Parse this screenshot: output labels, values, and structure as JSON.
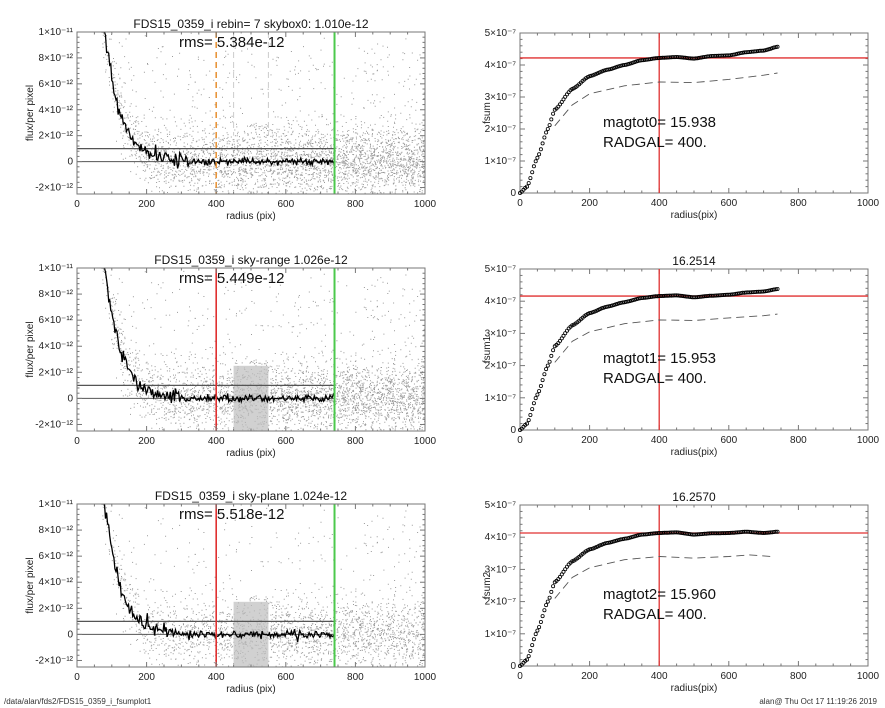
{
  "footer": {
    "path": "/data/alan/fds2/FDS15_0359_i_fsumplot1",
    "stamp": "alan@  Thu Oct 17 11:19:26 2019"
  },
  "colors": {
    "profile": "#000000",
    "scatter": "#9a9a9a",
    "sky_line": "#555555",
    "radgal_line": "#e03030",
    "radgal_dashed": "#e8963c",
    "outer_line": "#4cc94c",
    "fsum_curve": "#000000",
    "fsum_dashed": "#555555"
  },
  "chart_data": [
    {
      "id": "profile0",
      "type": "scatter",
      "title": "FDS15_0359_i rebin= 7    skybox0:  1.010e-12",
      "annotation": "rms= 5.384e-12",
      "xlabel": "radius (pix)",
      "ylabel": "flux/per pixel",
      "xlim": [
        0,
        1000
      ],
      "ylim": [
        -2.5e-12,
        1e-11
      ],
      "xticks": [
        0,
        200,
        400,
        600,
        800,
        1000
      ],
      "xtick_labels": [
        "0",
        "200",
        "400",
        "600",
        "800",
        "1000"
      ],
      "yticks": [
        -2e-12,
        0,
        2e-12,
        4e-12,
        6e-12,
        8e-12,
        1e-11
      ],
      "ytick_labels": [
        "-2×10⁻¹²",
        "0",
        "2×10⁻¹²",
        "4×10⁻¹²",
        "6×10⁻¹²",
        "8×10⁻¹²",
        "1×10⁻¹¹"
      ],
      "sky_level": 1e-12,
      "zero_level": 0,
      "radgal_line": {
        "x": 400,
        "style": "dashed",
        "color": "orange"
      },
      "outer_line": {
        "x": 740,
        "color": "green"
      },
      "sky_region": null,
      "profile": {
        "r_start": 70,
        "r_end": 740,
        "scale_length": 45
      }
    },
    {
      "id": "profile1",
      "type": "scatter",
      "title": "FDS15_0359_i sky-range  1.026e-12",
      "annotation": "rms= 5.449e-12",
      "xlabel": "radius (pix)",
      "ylabel": "flux/per pixel",
      "xlim": [
        0,
        1000
      ],
      "ylim": [
        -2.5e-12,
        1e-11
      ],
      "xticks": [
        0,
        200,
        400,
        600,
        800,
        1000
      ],
      "xtick_labels": [
        "0",
        "200",
        "400",
        "600",
        "800",
        "1000"
      ],
      "yticks": [
        -2e-12,
        0,
        2e-12,
        4e-12,
        6e-12,
        8e-12,
        1e-11
      ],
      "ytick_labels": [
        "-2×10⁻¹²",
        "0",
        "2×10⁻¹²",
        "4×10⁻¹²",
        "6×10⁻¹²",
        "8×10⁻¹²",
        "1×10⁻¹¹"
      ],
      "sky_level": 1e-12,
      "zero_level": 0,
      "radgal_line": {
        "x": 400,
        "style": "solid",
        "color": "red"
      },
      "outer_line": {
        "x": 740,
        "color": "green"
      },
      "sky_region": [
        450,
        550
      ],
      "profile": {
        "r_start": 70,
        "r_end": 740,
        "scale_length": 45
      }
    },
    {
      "id": "profile2",
      "type": "scatter",
      "title": "FDS15_0359_i sky-plane  1.024e-12",
      "annotation": "rms= 5.518e-12",
      "xlabel": "radius (pix)",
      "ylabel": "flux/per pixel",
      "xlim": [
        0,
        1000
      ],
      "ylim": [
        -2.5e-12,
        1e-11
      ],
      "xticks": [
        0,
        200,
        400,
        600,
        800,
        1000
      ],
      "xtick_labels": [
        "0",
        "200",
        "400",
        "600",
        "800",
        "1000"
      ],
      "yticks": [
        -2e-12,
        0,
        2e-12,
        4e-12,
        6e-12,
        8e-12,
        1e-11
      ],
      "ytick_labels": [
        "-2×10⁻¹²",
        "0",
        "2×10⁻¹²",
        "4×10⁻¹²",
        "6×10⁻¹²",
        "8×10⁻¹²",
        "1×10⁻¹¹"
      ],
      "sky_level": 1e-12,
      "zero_level": 0,
      "radgal_line": {
        "x": 400,
        "style": "solid",
        "color": "red"
      },
      "outer_line": {
        "x": 740,
        "color": "green"
      },
      "sky_region": [
        450,
        550
      ],
      "profile": {
        "r_start": 70,
        "r_end": 740,
        "scale_length": 45
      }
    },
    {
      "id": "fsum0",
      "type": "line",
      "title": "",
      "xlabel": "radius(pix)",
      "ylabel": "fsum",
      "annotations": [
        "magtot0=  15.938",
        "RADGAL=    400."
      ],
      "xlim": [
        0,
        1000
      ],
      "ylim": [
        0,
        5e-07
      ],
      "xticks": [
        0,
        200,
        400,
        600,
        800,
        1000
      ],
      "xtick_labels": [
        "0",
        "200",
        "400",
        "600",
        "800",
        "1000"
      ],
      "yticks": [
        0,
        1e-07,
        2e-07,
        3e-07,
        4e-07,
        5e-07
      ],
      "ytick_labels": [
        "0",
        "1×10⁻⁷",
        "2×10⁻⁷",
        "3×10⁻⁷",
        "4×10⁻⁷",
        "5×10⁻⁷"
      ],
      "crosshair": {
        "x": 400,
        "y": 4.22e-07
      },
      "curve": {
        "r": [
          0,
          20,
          50,
          80,
          100,
          150,
          200,
          250,
          300,
          350,
          400,
          450,
          500,
          550,
          600,
          650,
          700,
          740
        ],
        "f": [
          0,
          2e-08,
          1.1e-07,
          2e-07,
          2.6e-07,
          3.25e-07,
          3.65e-07,
          3.85e-07,
          4e-07,
          4.15e-07,
          4.22e-07,
          4.25e-07,
          4.2e-07,
          4.28e-07,
          4.3e-07,
          4.4e-07,
          4.45e-07,
          4.57e-07
        ]
      },
      "dashed": {
        "r": [
          100,
          150,
          200,
          300,
          400,
          500,
          600,
          700,
          740
        ],
        "f": [
          2.1e-07,
          2.75e-07,
          3.1e-07,
          3.35e-07,
          3.47e-07,
          3.45e-07,
          3.55e-07,
          3.68e-07,
          3.75e-07
        ]
      }
    },
    {
      "id": "fsum1",
      "type": "line",
      "title": "16.2514",
      "xlabel": "radius(pix)",
      "ylabel": "fsum1",
      "annotations": [
        "magtot1=  15.953",
        "RADGAL=    400."
      ],
      "xlim": [
        0,
        1000
      ],
      "ylim": [
        0,
        5e-07
      ],
      "xticks": [
        0,
        200,
        400,
        600,
        800,
        1000
      ],
      "xtick_labels": [
        "0",
        "200",
        "400",
        "600",
        "800",
        "1000"
      ],
      "yticks": [
        0,
        1e-07,
        2e-07,
        3e-07,
        4e-07,
        5e-07
      ],
      "ytick_labels": [
        "0",
        "1×10⁻⁷",
        "2×10⁻⁷",
        "3×10⁻⁷",
        "4×10⁻⁷",
        "5×10⁻⁷"
      ],
      "crosshair": {
        "x": 400,
        "y": 4.16e-07
      },
      "curve": {
        "r": [
          0,
          20,
          50,
          80,
          100,
          150,
          200,
          250,
          300,
          350,
          400,
          450,
          500,
          550,
          600,
          650,
          700,
          740
        ],
        "f": [
          0,
          2e-08,
          1.1e-07,
          2e-07,
          2.6e-07,
          3.25e-07,
          3.63e-07,
          3.83e-07,
          3.97e-07,
          4.1e-07,
          4.16e-07,
          4.18e-07,
          4.12e-07,
          4.17e-07,
          4.2e-07,
          4.27e-07,
          4.3e-07,
          4.38e-07
        ]
      },
      "dashed": {
        "r": [
          100,
          150,
          200,
          300,
          400,
          500,
          600,
          700,
          740
        ],
        "f": [
          2.1e-07,
          2.75e-07,
          3.05e-07,
          3.3e-07,
          3.42e-07,
          3.4e-07,
          3.48e-07,
          3.55e-07,
          3.6e-07
        ]
      }
    },
    {
      "id": "fsum2",
      "type": "line",
      "title": "16.2570",
      "xlabel": "radius(pix)",
      "ylabel": "fsum2",
      "annotations": [
        "magtot2=  15.960",
        "RADGAL=    400."
      ],
      "xlim": [
        0,
        1000
      ],
      "ylim": [
        0,
        5e-07
      ],
      "xticks": [
        0,
        200,
        400,
        600,
        800,
        1000
      ],
      "xtick_labels": [
        "0",
        "200",
        "400",
        "600",
        "800",
        "1000"
      ],
      "yticks": [
        0,
        1e-07,
        2e-07,
        3e-07,
        4e-07,
        5e-07
      ],
      "ytick_labels": [
        "0",
        "1×10⁻⁷",
        "2×10⁻⁷",
        "3×10⁻⁷",
        "4×10⁻⁷",
        "5×10⁻⁷"
      ],
      "crosshair": {
        "x": 400,
        "y": 4.13e-07
      },
      "curve": {
        "r": [
          0,
          20,
          50,
          80,
          100,
          150,
          200,
          250,
          300,
          350,
          400,
          450,
          500,
          550,
          600,
          650,
          700,
          740
        ],
        "f": [
          0,
          2e-08,
          1.1e-07,
          2e-07,
          2.6e-07,
          3.25e-07,
          3.62e-07,
          3.82e-07,
          3.95e-07,
          4.08e-07,
          4.13e-07,
          4.15e-07,
          4.08e-07,
          4.12e-07,
          4.13e-07,
          4.17e-07,
          4.13e-07,
          4.17e-07
        ]
      },
      "dashed": {
        "r": [
          100,
          150,
          200,
          300,
          400,
          500,
          600,
          660,
          720
        ],
        "f": [
          2.1e-07,
          2.75e-07,
          3.05e-07,
          3.3e-07,
          3.4e-07,
          3.35e-07,
          3.4e-07,
          3.45e-07,
          3.4e-07
        ]
      }
    }
  ]
}
